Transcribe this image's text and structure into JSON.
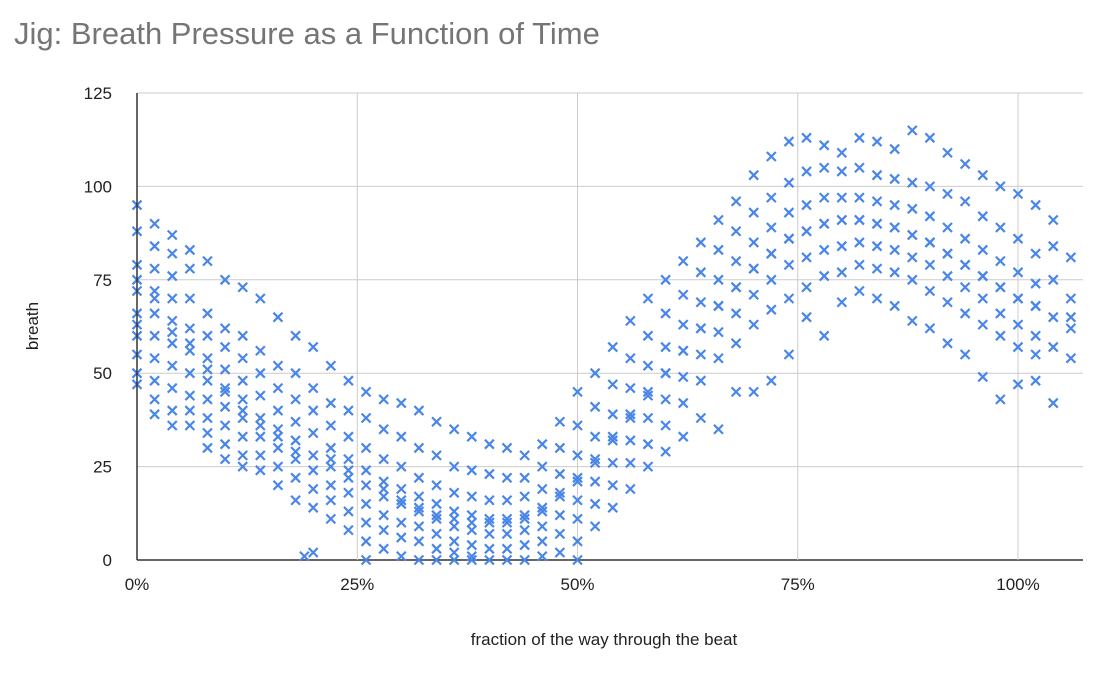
{
  "chart_data": {
    "type": "scatter",
    "title": "Jig: Breath Pressure as a Function of Time",
    "xlabel": "fraction of the way through the beat",
    "ylabel": "breath",
    "xlim": [
      0,
      107
    ],
    "ylim": [
      0,
      125
    ],
    "x_unit": "%",
    "x_ticks": [
      "0%",
      "25%",
      "50%",
      "75%",
      "100%"
    ],
    "x_tick_values": [
      0,
      25,
      50,
      75,
      100
    ],
    "y_ticks": [
      "0",
      "25",
      "50",
      "75",
      "100",
      "125"
    ],
    "y_tick_values": [
      0,
      25,
      50,
      75,
      100,
      125
    ],
    "grid": true,
    "legend": "none",
    "marker": "x",
    "color": "#4a86e8",
    "columns": [
      {
        "x": 0,
        "y": [
          95,
          88,
          79,
          72,
          66,
          60,
          55,
          50,
          47,
          75,
          63
        ]
      },
      {
        "x": 2,
        "y": [
          90,
          84,
          78,
          72,
          66,
          60,
          54,
          48,
          43,
          39,
          70
        ]
      },
      {
        "x": 4,
        "y": [
          87,
          82,
          76,
          70,
          64,
          58,
          52,
          46,
          40,
          36,
          61
        ]
      },
      {
        "x": 6,
        "y": [
          83,
          78,
          70,
          62,
          56,
          50,
          44,
          40,
          36,
          58
        ]
      },
      {
        "x": 8,
        "y": [
          80,
          66,
          60,
          54,
          48,
          43,
          38,
          34,
          30,
          51
        ]
      },
      {
        "x": 10,
        "y": [
          75,
          62,
          57,
          51,
          46,
          41,
          36,
          31,
          27,
          45
        ]
      },
      {
        "x": 12,
        "y": [
          73,
          60,
          54,
          48,
          43,
          38,
          33,
          28,
          25,
          40
        ]
      },
      {
        "x": 14,
        "y": [
          70,
          56,
          50,
          44,
          38,
          33,
          28,
          24,
          36
        ]
      },
      {
        "x": 16,
        "y": [
          65,
          52,
          46,
          40,
          35,
          30,
          25,
          20,
          33
        ]
      },
      {
        "x": 18,
        "y": [
          60,
          50,
          43,
          37,
          32,
          27,
          22,
          16,
          29
        ]
      },
      {
        "x": 19,
        "y": [
          1
        ]
      },
      {
        "x": 20,
        "y": [
          57,
          46,
          40,
          34,
          28,
          24,
          19,
          14,
          2
        ]
      },
      {
        "x": 22,
        "y": [
          52,
          42,
          36,
          30,
          25,
          20,
          16,
          11,
          27
        ]
      },
      {
        "x": 24,
        "y": [
          48,
          40,
          33,
          27,
          22,
          18,
          13,
          8,
          24
        ]
      },
      {
        "x": 26,
        "y": [
          45,
          38,
          30,
          24,
          20,
          15,
          10,
          5,
          0
        ]
      },
      {
        "x": 28,
        "y": [
          43,
          35,
          27,
          21,
          17,
          12,
          8,
          3,
          19
        ]
      },
      {
        "x": 30,
        "y": [
          42,
          33,
          25,
          19,
          15,
          10,
          6,
          1,
          16
        ]
      },
      {
        "x": 32,
        "y": [
          40,
          30,
          22,
          17,
          13,
          9,
          5,
          0,
          14
        ]
      },
      {
        "x": 34,
        "y": [
          37,
          28,
          20,
          15,
          11,
          7,
          3,
          0,
          12
        ]
      },
      {
        "x": 36,
        "y": [
          35,
          25,
          18,
          13,
          9,
          5,
          2,
          0,
          11
        ]
      },
      {
        "x": 38,
        "y": [
          33,
          24,
          17,
          12,
          8,
          4,
          1,
          0,
          10
        ]
      },
      {
        "x": 40,
        "y": [
          31,
          23,
          16,
          11,
          7,
          3,
          0,
          10
        ]
      },
      {
        "x": 42,
        "y": [
          30,
          22,
          16,
          11,
          7,
          3,
          0,
          10
        ]
      },
      {
        "x": 44,
        "y": [
          28,
          22,
          17,
          12,
          8,
          4,
          0,
          11
        ]
      },
      {
        "x": 46,
        "y": [
          31,
          25,
          19,
          14,
          9,
          5,
          1,
          13
        ]
      },
      {
        "x": 48,
        "y": [
          37,
          30,
          23,
          17,
          12,
          7,
          2,
          18
        ]
      },
      {
        "x": 50,
        "y": [
          45,
          36,
          28,
          22,
          16,
          11,
          5,
          0,
          21
        ]
      },
      {
        "x": 52,
        "y": [
          50,
          41,
          33,
          27,
          21,
          15,
          9,
          26
        ]
      },
      {
        "x": 54,
        "y": [
          57,
          47,
          39,
          32,
          26,
          20,
          14,
          33
        ]
      },
      {
        "x": 56,
        "y": [
          64,
          54,
          46,
          39,
          32,
          26,
          19,
          38
        ]
      },
      {
        "x": 58,
        "y": [
          70,
          60,
          52,
          45,
          38,
          31,
          25,
          44
        ]
      },
      {
        "x": 60,
        "y": [
          75,
          66,
          57,
          50,
          43,
          36,
          29,
          50
        ]
      },
      {
        "x": 62,
        "y": [
          80,
          71,
          63,
          56,
          49,
          42,
          33,
          56
        ]
      },
      {
        "x": 64,
        "y": [
          85,
          77,
          69,
          62,
          55,
          48,
          38,
          62
        ]
      },
      {
        "x": 66,
        "y": [
          91,
          83,
          75,
          68,
          61,
          54,
          35,
          68
        ]
      },
      {
        "x": 68,
        "y": [
          96,
          88,
          80,
          73,
          66,
          58,
          45,
          73
        ]
      },
      {
        "x": 70,
        "y": [
          103,
          93,
          85,
          78,
          71,
          63,
          45,
          78
        ]
      },
      {
        "x": 72,
        "y": [
          108,
          97,
          89,
          82,
          75,
          67,
          48,
          82
        ]
      },
      {
        "x": 74,
        "y": [
          112,
          101,
          93,
          86,
          79,
          70,
          55,
          86
        ]
      },
      {
        "x": 76,
        "y": [
          113,
          104,
          95,
          88,
          81,
          73,
          65,
          88
        ]
      },
      {
        "x": 78,
        "y": [
          111,
          105,
          97,
          90,
          83,
          76,
          60,
          90
        ]
      },
      {
        "x": 80,
        "y": [
          109,
          104,
          97,
          91,
          84,
          77,
          69,
          91
        ]
      },
      {
        "x": 82,
        "y": [
          113,
          105,
          97,
          91,
          85,
          79,
          72,
          91
        ]
      },
      {
        "x": 84,
        "y": [
          112,
          103,
          96,
          90,
          84,
          78,
          70,
          90
        ]
      },
      {
        "x": 86,
        "y": [
          110,
          102,
          95,
          89,
          83,
          77,
          68,
          89
        ]
      },
      {
        "x": 88,
        "y": [
          115,
          101,
          94,
          87,
          81,
          75,
          64,
          87
        ]
      },
      {
        "x": 90,
        "y": [
          113,
          100,
          92,
          85,
          79,
          72,
          62,
          85
        ]
      },
      {
        "x": 92,
        "y": [
          109,
          98,
          89,
          82,
          76,
          69,
          58,
          82
        ]
      },
      {
        "x": 94,
        "y": [
          106,
          96,
          86,
          79,
          73,
          66,
          55,
          79
        ]
      },
      {
        "x": 96,
        "y": [
          103,
          92,
          83,
          76,
          70,
          63,
          49,
          76
        ]
      },
      {
        "x": 98,
        "y": [
          100,
          89,
          80,
          73,
          66,
          60,
          43,
          73
        ]
      },
      {
        "x": 100,
        "y": [
          98,
          86,
          77,
          70,
          63,
          57,
          47,
          70
        ]
      },
      {
        "x": 102,
        "y": [
          95,
          82,
          74,
          68,
          60,
          55,
          48,
          68
        ]
      },
      {
        "x": 104,
        "y": [
          91,
          84,
          75,
          65,
          57,
          42
        ]
      },
      {
        "x": 106,
        "y": [
          81,
          70,
          65,
          62,
          54
        ]
      }
    ]
  }
}
